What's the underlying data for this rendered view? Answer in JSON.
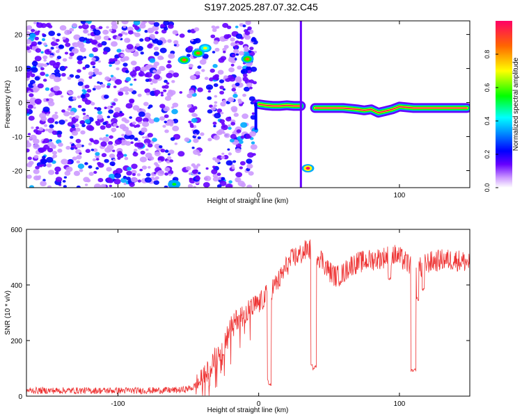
{
  "title": "S197.2025.287.07.32.C45",
  "colors": {
    "snr_line": "#ee3333",
    "axis": "#000000",
    "spectral_ridge": "#33ccff"
  },
  "chart_data": [
    {
      "type": "heatmap",
      "title": "S197.2025.287.07.32.C45",
      "xlabel": "Height of straight line (km)",
      "ylabel": "Frequency (Hz)",
      "xlim": [
        -165,
        150
      ],
      "ylim": [
        -25,
        24
      ],
      "x_ticks": [
        -100,
        0,
        100
      ],
      "x_tick_labels": [
        "-100",
        "0",
        "100"
      ],
      "y_ticks": [
        20,
        10,
        0,
        -10,
        -20
      ],
      "y_tick_labels": [
        "20",
        "10",
        "0",
        "-10",
        "-20"
      ],
      "colorbar": {
        "label": "Normalized spectral amplitude",
        "range": [
          0,
          1
        ],
        "ticks": [
          0.0,
          0.2,
          0.4,
          0.6,
          0.8
        ],
        "tick_labels": [
          "0.0",
          "0.2",
          "0.4",
          "0.6",
          "0.8"
        ]
      },
      "noise_region_x": [
        -165,
        -2
      ],
      "main_ridge": [
        {
          "x": 0,
          "f": -0.5
        },
        {
          "x": 5,
          "f": -0.8
        },
        {
          "x": 10,
          "f": -1.0
        },
        {
          "x": 15,
          "f": -1.0
        },
        {
          "x": 20,
          "f": -0.8
        },
        {
          "x": 25,
          "f": -1.0
        },
        {
          "x": 30,
          "f": -1.0
        },
        {
          "x": 40,
          "f": -1.6
        },
        {
          "x": 50,
          "f": -1.6
        },
        {
          "x": 60,
          "f": -1.6
        },
        {
          "x": 70,
          "f": -2.0
        },
        {
          "x": 75,
          "f": -2.3
        },
        {
          "x": 80,
          "f": -2.0
        },
        {
          "x": 85,
          "f": -3.0
        },
        {
          "x": 90,
          "f": -2.5
        },
        {
          "x": 95,
          "f": -2.0
        },
        {
          "x": 100,
          "f": -1.2
        },
        {
          "x": 105,
          "f": -1.4
        },
        {
          "x": 110,
          "f": -1.6
        },
        {
          "x": 120,
          "f": -1.6
        },
        {
          "x": 130,
          "f": -1.6
        },
        {
          "x": 140,
          "f": -1.6
        },
        {
          "x": 148,
          "f": -1.6
        }
      ],
      "hot_spots": [
        {
          "x": -53,
          "f": 12.5,
          "level": 0.8
        },
        {
          "x": -43,
          "f": 14.5,
          "level": 0.8
        },
        {
          "x": -38,
          "f": 16.0,
          "level": 0.7
        },
        {
          "x": -8,
          "f": 12.8,
          "level": 0.75
        },
        {
          "x": 35,
          "f": -19.3,
          "level": 0.95
        },
        {
          "x": -60,
          "f": -24.0,
          "level": 0.5
        }
      ]
    },
    {
      "type": "line",
      "xlabel": "Height of straight line (km)",
      "ylabel": "SNR (10 * v/v)",
      "xlim": [
        -165,
        150
      ],
      "ylim": [
        0,
        600
      ],
      "x_ticks": [
        -100,
        0,
        100
      ],
      "x_tick_labels": [
        "-100",
        "0",
        "100"
      ],
      "y_ticks": [
        0,
        200,
        400,
        600
      ],
      "y_tick_labels": [
        "0",
        "200",
        "400",
        "600"
      ],
      "series": [
        {
          "name": "SNR",
          "envelope": [
            {
              "x": -165,
              "y": 20
            },
            {
              "x": -120,
              "y": 20
            },
            {
              "x": -80,
              "y": 20
            },
            {
              "x": -55,
              "y": 22
            },
            {
              "x": -47,
              "y": 30
            },
            {
              "x": -40,
              "y": 60
            },
            {
              "x": -35,
              "y": 100
            },
            {
              "x": -30,
              "y": 150
            },
            {
              "x": -25,
              "y": 180
            },
            {
              "x": -22,
              "y": 230
            },
            {
              "x": -18,
              "y": 260
            },
            {
              "x": -15,
              "y": 280
            },
            {
              "x": -10,
              "y": 300
            },
            {
              "x": -5,
              "y": 320
            },
            {
              "x": 0,
              "y": 330
            },
            {
              "x": 5,
              "y": 360
            },
            {
              "x": 10,
              "y": 390
            },
            {
              "x": 15,
              "y": 420
            },
            {
              "x": 20,
              "y": 470
            },
            {
              "x": 25,
              "y": 500
            },
            {
              "x": 30,
              "y": 510
            },
            {
              "x": 35,
              "y": 530
            },
            {
              "x": 40,
              "y": 520
            },
            {
              "x": 45,
              "y": 490
            },
            {
              "x": 50,
              "y": 450
            },
            {
              "x": 55,
              "y": 430
            },
            {
              "x": 60,
              "y": 440
            },
            {
              "x": 65,
              "y": 470
            },
            {
              "x": 70,
              "y": 480
            },
            {
              "x": 80,
              "y": 490
            },
            {
              "x": 90,
              "y": 500
            },
            {
              "x": 95,
              "y": 510
            },
            {
              "x": 100,
              "y": 500
            },
            {
              "x": 105,
              "y": 480
            },
            {
              "x": 110,
              "y": 470
            },
            {
              "x": 115,
              "y": 460
            },
            {
              "x": 120,
              "y": 480
            },
            {
              "x": 130,
              "y": 490
            },
            {
              "x": 140,
              "y": 490
            },
            {
              "x": 150,
              "y": 480
            }
          ],
          "dips": [
            {
              "x": 7,
              "y": 60
            },
            {
              "x": 8,
              "y": 40
            },
            {
              "x": 38,
              "y": 110
            },
            {
              "x": 39,
              "y": 100
            },
            {
              "x": 40,
              "y": 105
            },
            {
              "x": 109,
              "y": 90
            },
            {
              "x": 110,
              "y": 85
            },
            {
              "x": 111,
              "y": 95
            },
            {
              "x": 113,
              "y": 350
            },
            {
              "x": 117,
              "y": 380
            },
            {
              "x": 93,
              "y": 420
            }
          ],
          "noise_amplitude": 40
        }
      ]
    }
  ]
}
